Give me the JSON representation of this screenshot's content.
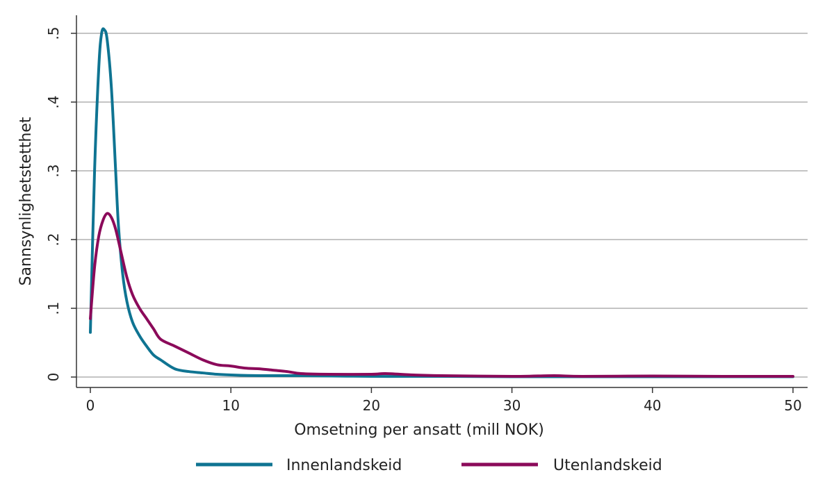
{
  "chart_data": {
    "type": "line",
    "title": "",
    "xlabel": "Omsetning per ansatt (mill NOK)",
    "ylabel": "Sannsynlighetstetthet",
    "xlim": [
      0,
      50
    ],
    "ylim": [
      0,
      0.5
    ],
    "x_ticks": [
      0,
      10,
      20,
      30,
      40,
      50
    ],
    "x_tick_labels": [
      "0",
      "10",
      "20",
      "30",
      "40",
      "50"
    ],
    "y_ticks": [
      0,
      0.1,
      0.2,
      0.3,
      0.4,
      0.5
    ],
    "y_tick_labels": [
      "0",
      ".1",
      ".2",
      ".3",
      ".4",
      ".5"
    ],
    "grid": "horizontal",
    "legend_position": "bottom",
    "series": [
      {
        "name": "Innenlandskeid",
        "color": "#0f7492",
        "x": [
          0,
          0.3,
          0.6,
          0.8,
          1.0,
          1.2,
          1.5,
          1.8,
          2.0,
          2.3,
          2.6,
          3.0,
          3.5,
          4.0,
          4.5,
          5.0,
          6.0,
          7.0,
          8.0,
          9.0,
          10,
          12,
          15,
          20,
          25,
          30,
          35,
          40,
          45,
          50
        ],
        "y": [
          0.065,
          0.3,
          0.45,
          0.5,
          0.505,
          0.49,
          0.42,
          0.3,
          0.22,
          0.15,
          0.11,
          0.08,
          0.06,
          0.045,
          0.032,
          0.025,
          0.012,
          0.008,
          0.006,
          0.004,
          0.003,
          0.002,
          0.002,
          0.001,
          0.001,
          0.0005,
          0.0005,
          0.0005,
          0.0005,
          0.0005
        ]
      },
      {
        "name": "Utenlandskeid",
        "color": "#8b0a5a",
        "x": [
          0,
          0.3,
          0.6,
          0.9,
          1.2,
          1.5,
          1.8,
          2.2,
          2.6,
          3.0,
          3.5,
          4.0,
          4.5,
          5.0,
          6.0,
          7.0,
          8.0,
          9.0,
          10,
          11,
          12,
          13,
          14,
          15,
          17,
          20,
          21,
          23,
          25,
          30,
          33,
          35,
          40,
          45,
          50
        ],
        "y": [
          0.085,
          0.16,
          0.205,
          0.228,
          0.238,
          0.232,
          0.215,
          0.18,
          0.145,
          0.12,
          0.1,
          0.085,
          0.07,
          0.055,
          0.045,
          0.035,
          0.025,
          0.018,
          0.016,
          0.013,
          0.012,
          0.01,
          0.008,
          0.005,
          0.004,
          0.004,
          0.005,
          0.003,
          0.002,
          0.001,
          0.002,
          0.001,
          0.0015,
          0.001,
          0.001
        ]
      }
    ]
  }
}
